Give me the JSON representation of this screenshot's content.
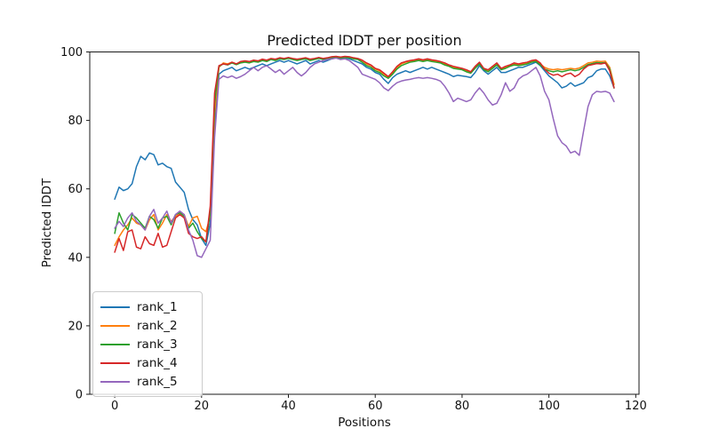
{
  "chart_data": {
    "type": "line",
    "title": "Predicted lDDT per position",
    "xlabel": "Positions",
    "ylabel": "Predicted lDDT",
    "xlim": [
      -5.75,
      120.75
    ],
    "ylim": [
      0,
      100
    ],
    "xticks": [
      0,
      20,
      40,
      60,
      80,
      100,
      120
    ],
    "yticks": [
      0,
      20,
      40,
      60,
      80,
      100
    ],
    "grid": false,
    "legend_position": "lower left",
    "x_start": 0,
    "x_step": 1,
    "series": [
      {
        "name": "rank_1",
        "color": "#1f77b4",
        "values": [
          57,
          60.5,
          59.5,
          60,
          61.5,
          66.5,
          69.5,
          68.5,
          70.5,
          70,
          67,
          67.5,
          66.5,
          66,
          62,
          60.5,
          59,
          54,
          51,
          49.5,
          45.5,
          43.5,
          50,
          78,
          93.5,
          94.5,
          95,
          95.5,
          94.5,
          95,
          95.5,
          95,
          95.5,
          96,
          96.5,
          96,
          96.5,
          97,
          97.5,
          97,
          97.5,
          97,
          96.5,
          97,
          97.5,
          96.5,
          97,
          97.5,
          97,
          97.5,
          98,
          98.3,
          98,
          98.3,
          98,
          97.5,
          97,
          96.5,
          95.5,
          95,
          94,
          93.5,
          92,
          90.8,
          92.5,
          93.5,
          94,
          94.5,
          94,
          94.5,
          95,
          95.5,
          95,
          95.5,
          95,
          94.5,
          94,
          93.5,
          92.8,
          93.2,
          93,
          92.8,
          92.5,
          94,
          96,
          94.5,
          93.5,
          94.5,
          95.5,
          94,
          94,
          94.5,
          95,
          95.5,
          95.5,
          96,
          96.5,
          97,
          96,
          94.5,
          93,
          92,
          91,
          89.5,
          90,
          91,
          90,
          90.5,
          91,
          92.5,
          93,
          94.5,
          95,
          95,
          93,
          89.5
        ]
      },
      {
        "name": "rank_2",
        "color": "#ff7f0e",
        "values": [
          43.5,
          46,
          48,
          49.5,
          51.5,
          50,
          49.5,
          48,
          51,
          52.5,
          48,
          50,
          52.5,
          50.5,
          52,
          53,
          52.5,
          49,
          51.5,
          52,
          48.5,
          47.5,
          52,
          82,
          95.5,
          96.8,
          96.5,
          97,
          96.5,
          97,
          97.3,
          97,
          97.5,
          97.3,
          97.8,
          97.5,
          98,
          97.8,
          98.2,
          98,
          98.3,
          98,
          97.8,
          98,
          98.2,
          97.8,
          98,
          98.3,
          98,
          98.2,
          98.5,
          98.6,
          98.4,
          98.6,
          98.5,
          98.2,
          98,
          97.5,
          96.5,
          96,
          95,
          94.5,
          93.5,
          92.5,
          94,
          95.5,
          96.5,
          97,
          97.3,
          97.5,
          97.8,
          97.5,
          97.8,
          97.5,
          97.3,
          97,
          96.5,
          96,
          95.5,
          95.3,
          95,
          94.5,
          94,
          95.5,
          96.8,
          95,
          94.5,
          95.5,
          96.5,
          95,
          95.5,
          96,
          96.5,
          96.3,
          96.5,
          96.8,
          97.3,
          97.5,
          96.5,
          95.5,
          95,
          94.8,
          95,
          94.8,
          95,
          95.2,
          95,
          95.3,
          96,
          96.8,
          97,
          97.3,
          97.2,
          97.3,
          95.5,
          90.5
        ]
      },
      {
        "name": "rank_3",
        "color": "#2ca02c",
        "values": [
          47,
          53,
          50,
          48,
          52.5,
          51.5,
          50,
          48.5,
          52,
          51,
          48.5,
          51.5,
          52,
          49.5,
          52.5,
          53,
          52,
          48.5,
          50,
          47.5,
          45.5,
          44.5,
          53,
          85,
          95.8,
          96.5,
          96.2,
          96.8,
          96.3,
          96.8,
          97,
          96.8,
          97.2,
          97,
          97.5,
          97.2,
          97.8,
          97.5,
          98,
          97.8,
          98.1,
          97.8,
          97.5,
          97.8,
          98,
          97.5,
          97.8,
          98.1,
          97.8,
          98,
          98.3,
          98.5,
          98.2,
          98.4,
          98.3,
          98,
          97.8,
          97,
          96,
          95.5,
          94.5,
          94,
          93,
          92.3,
          93.5,
          95,
          96,
          96.5,
          97,
          97.2,
          97.5,
          97.2,
          97.5,
          97.2,
          97,
          96.8,
          96.2,
          95.8,
          95.2,
          95,
          94.8,
          94.2,
          93.8,
          95.2,
          96.5,
          94.8,
          94.2,
          95.2,
          96.2,
          94.8,
          95.2,
          95.8,
          96.2,
          96,
          96.2,
          96.5,
          97,
          97.2,
          96.2,
          95,
          94.5,
          94.2,
          94.5,
          94.2,
          94.5,
          94.8,
          94.5,
          94.8,
          95.5,
          96.3,
          96.6,
          96.9,
          96.8,
          96.9,
          95,
          89.5
        ]
      },
      {
        "name": "rank_4",
        "color": "#d62728",
        "values": [
          41.5,
          45.5,
          42,
          47.5,
          48,
          43,
          42.5,
          46,
          44,
          43.5,
          47,
          43,
          43.5,
          47.5,
          51.5,
          52.5,
          51.5,
          47,
          46,
          45.5,
          46,
          44.5,
          55,
          88,
          96,
          96.5,
          96.3,
          97,
          96.5,
          97.2,
          97.4,
          97.2,
          97.6,
          97.4,
          97.9,
          97.6,
          98.1,
          97.9,
          98.3,
          98.1,
          98.4,
          98.1,
          97.9,
          98.1,
          98.3,
          97.9,
          98.1,
          98.4,
          98.1,
          98.3,
          98.6,
          98.7,
          98.5,
          98.7,
          98.6,
          98.3,
          98.1,
          97.6,
          96.8,
          96.2,
          95.2,
          94.8,
          93.8,
          92.8,
          94.2,
          95.8,
          96.8,
          97.2,
          97.5,
          97.7,
          98,
          97.7,
          98,
          97.7,
          97.5,
          97.2,
          96.8,
          96.2,
          95.8,
          95.5,
          95.2,
          94.8,
          94.2,
          95.8,
          97,
          95.2,
          94.8,
          95.8,
          96.8,
          95.2,
          95.8,
          96.2,
          96.8,
          96.5,
          96.8,
          97,
          97.5,
          97.7,
          96.8,
          95,
          93.8,
          93.2,
          93.5,
          92.8,
          93.5,
          93.8,
          92.8,
          93.5,
          95,
          96,
          96.3,
          96.6,
          96.5,
          96.8,
          94.5,
          89.5
        ]
      },
      {
        "name": "rank_5",
        "color": "#9467bd",
        "values": [
          48.5,
          50.5,
          49,
          51.5,
          53,
          50.5,
          49.5,
          48,
          52,
          54,
          50,
          51.5,
          53.5,
          50,
          52.5,
          53.5,
          52.5,
          48,
          45,
          40.5,
          40,
          42.5,
          45,
          75,
          92,
          93,
          92.5,
          93,
          92.3,
          92.8,
          93.5,
          94.5,
          95.5,
          94.5,
          95.5,
          96,
          95,
          94,
          94.8,
          93.5,
          94.5,
          95.5,
          94,
          93,
          94,
          95.5,
          96.5,
          97,
          97.5,
          97.8,
          98,
          98.2,
          97.8,
          98,
          97.5,
          96.5,
          95.5,
          93.5,
          93,
          92.5,
          92,
          91,
          89.5,
          88.7,
          90,
          91,
          91.5,
          91.8,
          92,
          92.3,
          92.5,
          92.3,
          92.5,
          92.3,
          92,
          91.5,
          90,
          88,
          85.5,
          86.5,
          86,
          85.5,
          86,
          88,
          89.5,
          88,
          86,
          84.5,
          85,
          87.5,
          91,
          88.5,
          89.5,
          92,
          93,
          93.5,
          94.5,
          95.5,
          93,
          88.5,
          86,
          80.5,
          75.5,
          73.5,
          72.5,
          70.5,
          71,
          69.8,
          77,
          84,
          87.5,
          88.5,
          88.3,
          88.5,
          88,
          85.5
        ]
      }
    ]
  }
}
